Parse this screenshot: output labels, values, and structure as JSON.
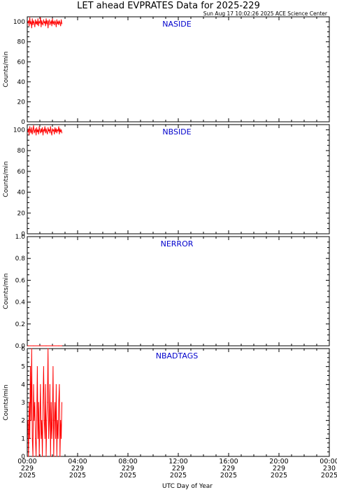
{
  "header": {
    "title": "LET ahead EVPRATES Data for 2025-229",
    "timestamp": "Sun Aug 17 10:02:26 2025 ACE Science Center"
  },
  "colors": {
    "data": "#ff0000",
    "label": "#0000cc",
    "axes": "#000000"
  },
  "chart_data": [
    {
      "type": "line",
      "title": "NASIDE",
      "ylabel": "Counts/min",
      "ylim": [
        0,
        105
      ],
      "yticks": [
        "0",
        "20",
        "40",
        "60",
        "80",
        "100"
      ],
      "x_hours": [
        0.05,
        0.1,
        0.15,
        0.2,
        0.25,
        0.3,
        0.35,
        0.4,
        0.45,
        0.5,
        0.55,
        0.6,
        0.65,
        0.7,
        0.75,
        0.8,
        0.85,
        0.9,
        0.95,
        1.0,
        1.05,
        1.1,
        1.15,
        1.2,
        1.25,
        1.3,
        1.35,
        1.4,
        1.45,
        1.5,
        1.55,
        1.6,
        1.65,
        1.7,
        1.75,
        1.8,
        1.85,
        1.9,
        1.95,
        2.0,
        2.05,
        2.1,
        2.15,
        2.2,
        2.25,
        2.3,
        2.35,
        2.4,
        2.45,
        2.5,
        2.55,
        2.6,
        2.65,
        2.7,
        2.75
      ],
      "values": [
        99,
        101,
        96,
        104,
        98,
        100,
        94,
        103,
        97,
        101,
        99,
        95,
        102,
        98,
        100,
        97,
        103,
        96,
        100,
        99,
        104,
        95,
        101,
        98,
        97,
        102,
        99,
        100,
        96,
        103,
        98,
        101,
        94,
        100,
        102,
        97,
        99,
        101,
        96,
        103,
        98,
        100,
        97,
        101,
        99,
        95,
        102,
        98,
        100,
        97,
        101,
        99,
        96,
        102,
        98
      ]
    },
    {
      "type": "line",
      "title": "NBSIDE",
      "ylabel": "Counts/min",
      "ylim": [
        0,
        105
      ],
      "yticks": [
        "0",
        "20",
        "40",
        "60",
        "80",
        "100"
      ],
      "x_hours": [
        0.05,
        0.1,
        0.15,
        0.2,
        0.25,
        0.3,
        0.35,
        0.4,
        0.45,
        0.5,
        0.55,
        0.6,
        0.65,
        0.7,
        0.75,
        0.8,
        0.85,
        0.9,
        0.95,
        1.0,
        1.05,
        1.1,
        1.15,
        1.2,
        1.25,
        1.3,
        1.35,
        1.4,
        1.45,
        1.5,
        1.55,
        1.6,
        1.65,
        1.7,
        1.75,
        1.8,
        1.85,
        1.9,
        1.95,
        2.0,
        2.05,
        2.1,
        2.15,
        2.2,
        2.25,
        2.3,
        2.35,
        2.4,
        2.45,
        2.5,
        2.55,
        2.6,
        2.65,
        2.7,
        2.75
      ],
      "values": [
        98,
        101,
        95,
        103,
        99,
        97,
        102,
        96,
        100,
        104,
        97,
        99,
        101,
        95,
        102,
        98,
        100,
        96,
        103,
        99,
        97,
        101,
        98,
        102,
        95,
        100,
        99,
        103,
        97,
        101,
        98,
        96,
        102,
        99,
        100,
        97,
        103,
        98,
        95,
        101,
        99,
        100,
        96,
        102,
        98,
        101,
        97,
        100,
        99,
        103,
        96,
        101,
        98,
        100,
        97
      ]
    },
    {
      "type": "line",
      "title": "NERROR",
      "ylabel": "Counts/min",
      "ylim": [
        0,
        1.0
      ],
      "yticks": [
        "0.0",
        "0.2",
        "0.4",
        "0.6",
        "0.8",
        "1.0"
      ],
      "x_hours": [
        0.05,
        0.5,
        1.0,
        1.5,
        2.0,
        2.5,
        2.75
      ],
      "values": [
        0,
        0,
        0,
        0,
        0,
        0,
        0
      ]
    },
    {
      "type": "line",
      "title": "NBADTAGS",
      "ylabel": "Counts/min",
      "ylim": [
        0,
        6
      ],
      "yticks": [
        "0",
        "1",
        "2",
        "3",
        "4",
        "5",
        "6"
      ],
      "x_hours": [
        0.05,
        0.1,
        0.15,
        0.2,
        0.25,
        0.3,
        0.35,
        0.4,
        0.45,
        0.5,
        0.55,
        0.6,
        0.65,
        0.7,
        0.75,
        0.8,
        0.85,
        0.9,
        0.95,
        1.0,
        1.05,
        1.1,
        1.15,
        1.2,
        1.25,
        1.3,
        1.35,
        1.4,
        1.45,
        1.5,
        1.55,
        1.6,
        1.65,
        1.7,
        1.75,
        1.8,
        1.85,
        1.9,
        1.95,
        2.0,
        2.05,
        2.1,
        2.15,
        2.2,
        2.25,
        2.3,
        2.35,
        2.4,
        2.45,
        2.5,
        2.55,
        2.6,
        2.65,
        2.7,
        2.75
      ],
      "values": [
        2,
        0,
        3,
        1,
        5,
        2,
        6,
        1,
        0,
        4,
        2,
        3,
        1,
        0,
        2,
        5,
        1,
        3,
        0,
        2,
        4,
        1,
        2,
        0,
        3,
        5,
        2,
        1,
        4,
        0,
        2,
        3,
        6,
        1,
        2,
        4,
        0,
        3,
        1,
        2,
        5,
        0,
        2,
        3,
        1,
        4,
        0,
        2,
        1,
        3,
        4,
        0,
        2,
        1,
        3
      ]
    }
  ],
  "x_axis": {
    "label": "UTC Day of Year",
    "range_hours": [
      0,
      24
    ],
    "ticks": [
      {
        "hour": 0,
        "time": "00:00",
        "doy": "229",
        "year": "2025"
      },
      {
        "hour": 4,
        "time": "04:00",
        "doy": "229",
        "year": "2025"
      },
      {
        "hour": 8,
        "time": "08:00",
        "doy": "229",
        "year": "2025"
      },
      {
        "hour": 12,
        "time": "12:00",
        "doy": "229",
        "year": "2025"
      },
      {
        "hour": 16,
        "time": "16:00",
        "doy": "229",
        "year": "2025"
      },
      {
        "hour": 20,
        "time": "20:00",
        "doy": "229",
        "year": "2025"
      },
      {
        "hour": 24,
        "time": "00:00",
        "doy": "230",
        "year": "2025"
      }
    ]
  }
}
